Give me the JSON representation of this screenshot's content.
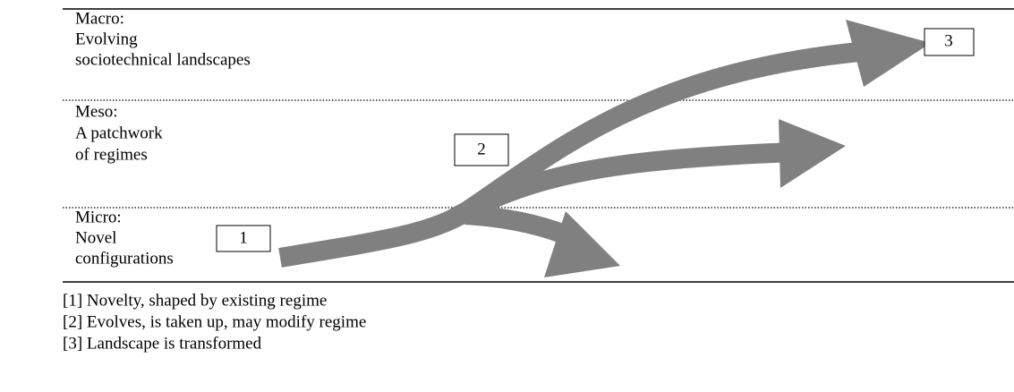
{
  "levels": [
    {
      "lines": [
        "Macro:",
        "Evolving",
        "sociotechnical landscapes"
      ]
    },
    {
      "lines": [
        "Meso:",
        "A patchwork",
        "of regimes"
      ]
    },
    {
      "lines": [
        "Micro:",
        "Novel",
        "configurations"
      ]
    }
  ],
  "boxes": [
    "1",
    "2",
    "3"
  ],
  "notes": [
    "[1] Novelty, shaped by existing regime",
    "[2] Evolves, is taken up, may modify regime",
    "[3] Landscape is transformed"
  ]
}
